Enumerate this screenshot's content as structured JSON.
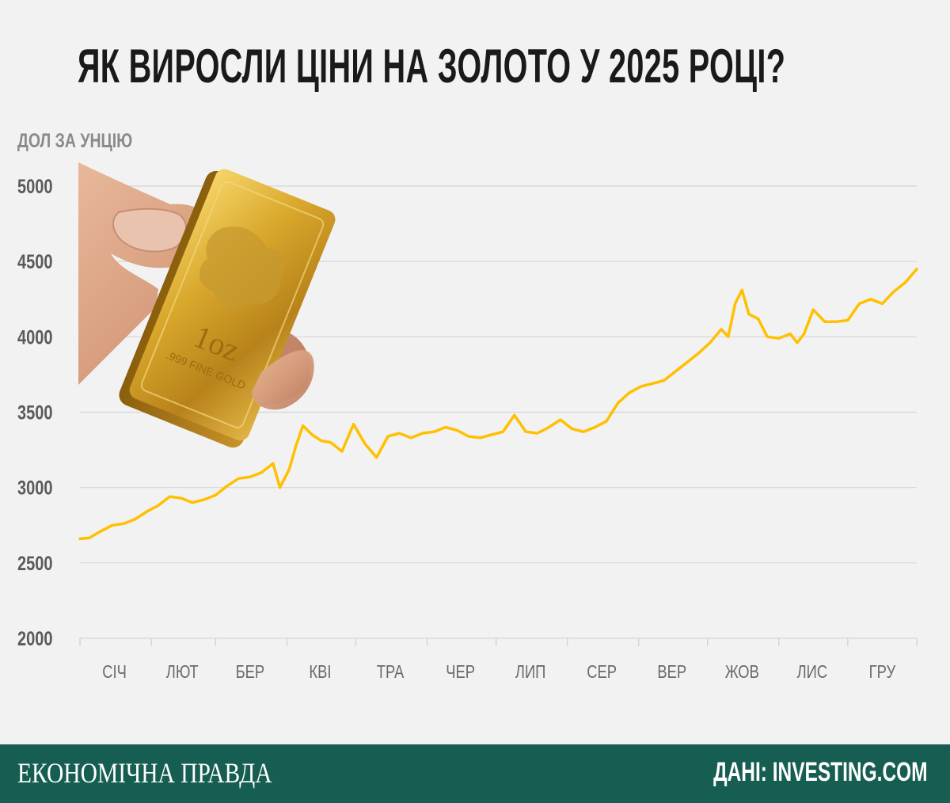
{
  "title": "ЯК ВИРОСЛИ ЦІНИ НА ЗОЛОТО У 2025 РОЦІ?",
  "footer": {
    "brand": "ЕКОНОМІЧНА ПРАВДА",
    "source": "ДАНІ: INVESTING.COM",
    "background": "#155e51"
  },
  "illustration": {
    "bar_text": "1oz",
    "bar_subtext": ".999 FINE GOLD"
  },
  "chart_data": {
    "type": "line",
    "ylabel": "ДОЛ ЗА УНЦІЮ",
    "ylim": [
      2000,
      5000
    ],
    "yticks": [
      5000,
      4500,
      4000,
      3500,
      3000,
      2500,
      2000
    ],
    "xlim": [
      1,
      365
    ],
    "month_labels": [
      "СІЧ",
      "ЛЮТ",
      "БЕР",
      "КВІ",
      "ТРА",
      "ЧЕР",
      "ЛИП",
      "СЕР",
      "ВЕР",
      "ЖОВ",
      "ЛИС",
      "ГРУ"
    ],
    "grid": true,
    "line_color": "#ffc000",
    "series": [
      {
        "x": [
          1,
          5,
          10,
          15,
          20,
          25,
          30,
          35,
          40,
          45,
          50,
          55,
          60,
          65,
          70,
          75,
          80,
          85,
          88,
          92,
          95,
          98,
          102,
          106,
          110,
          115,
          120,
          125,
          130,
          135,
          140,
          145,
          150,
          155,
          160,
          165,
          170,
          175,
          180,
          185,
          190,
          195,
          200,
          205,
          210,
          215,
          220,
          225,
          230,
          235,
          240,
          245,
          250,
          255,
          260,
          265,
          270,
          275,
          280,
          283,
          286,
          289,
          292,
          296,
          300,
          305,
          310,
          313,
          316,
          320,
          325,
          330,
          335,
          340,
          345,
          350,
          355,
          360,
          365
        ],
        "values": [
          2660,
          2665,
          2710,
          2750,
          2760,
          2790,
          2840,
          2880,
          2940,
          2930,
          2900,
          2920,
          2950,
          3010,
          3060,
          3070,
          3100,
          3160,
          3000,
          3120,
          3280,
          3410,
          3350,
          3310,
          3300,
          3240,
          3420,
          3290,
          3200,
          3340,
          3360,
          3330,
          3360,
          3370,
          3400,
          3380,
          3340,
          3330,
          3350,
          3370,
          3480,
          3370,
          3360,
          3400,
          3450,
          3390,
          3370,
          3400,
          3440,
          3560,
          3630,
          3670,
          3690,
          3710,
          3770,
          3830,
          3890,
          3960,
          4050,
          4000,
          4220,
          4310,
          4150,
          4120,
          4000,
          3990,
          4020,
          3960,
          4020,
          4180,
          4100,
          4100,
          4110,
          4220,
          4250,
          4220,
          4300,
          4360,
          4450
        ]
      }
    ]
  }
}
